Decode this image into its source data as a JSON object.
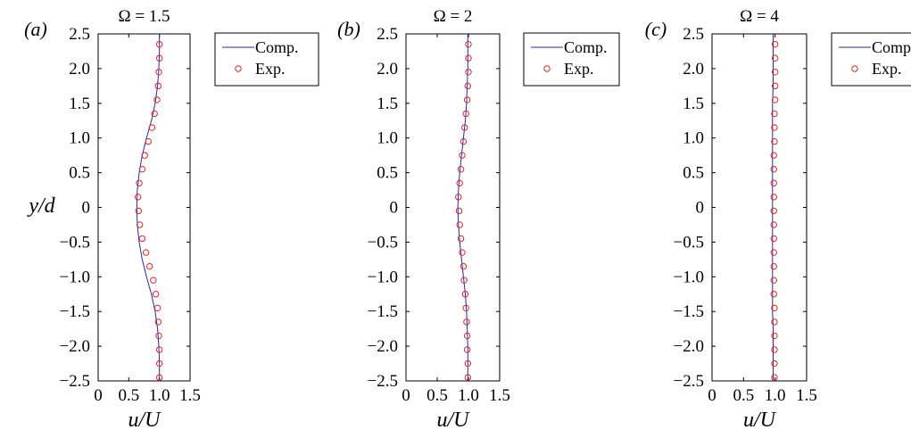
{
  "chart_data": [
    {
      "type": "line",
      "panel_label": "(a)",
      "title": "Ω = 1.5",
      "xlabel": "u/U",
      "ylabel": "y/d",
      "xlim": [
        0,
        1.5
      ],
      "ylim": [
        -2.5,
        2.5
      ],
      "xticks": [
        "0",
        "0.5",
        "1.0",
        "1.5"
      ],
      "yticks": [
        "2.5",
        "2.0",
        "1.5",
        "1.0",
        "0.5",
        "0",
        "−0.5",
        "−1.0",
        "−1.5",
        "−2.0",
        "−2.5"
      ],
      "legend": {
        "position": "outside-right",
        "entries": [
          "Comp.",
          "Exp."
        ]
      },
      "series": [
        {
          "name": "Comp.",
          "style": "line",
          "color": "#1f2e9c",
          "x": [
            1.0,
            1.0,
            0.99,
            0.97,
            0.93,
            0.87,
            0.79,
            0.72,
            0.67,
            0.64,
            0.63,
            0.64,
            0.67,
            0.72,
            0.79,
            0.87,
            0.93,
            0.97,
            0.99,
            1.0,
            1.0
          ],
          "y": [
            2.5,
            2.25,
            2.0,
            1.75,
            1.5,
            1.25,
            1.0,
            0.75,
            0.5,
            0.25,
            0.0,
            -0.25,
            -0.5,
            -0.75,
            -1.0,
            -1.25,
            -1.5,
            -1.75,
            -2.0,
            -2.25,
            -2.5
          ]
        },
        {
          "name": "Exp.",
          "style": "marker",
          "color": "#e0202a",
          "x": [
            1.0,
            1.0,
            0.99,
            0.98,
            0.96,
            0.92,
            0.88,
            0.82,
            0.76,
            0.72,
            0.67,
            0.65,
            0.66,
            0.68,
            0.72,
            0.78,
            0.84,
            0.9,
            0.94,
            0.97,
            0.98,
            0.99,
            1.0,
            1.0,
            1.0
          ],
          "y": [
            2.35,
            2.15,
            1.95,
            1.75,
            1.55,
            1.35,
            1.15,
            0.95,
            0.75,
            0.55,
            0.35,
            0.15,
            -0.05,
            -0.25,
            -0.45,
            -0.65,
            -0.85,
            -1.05,
            -1.25,
            -1.45,
            -1.65,
            -1.85,
            -2.05,
            -2.25,
            -2.45
          ]
        }
      ]
    },
    {
      "type": "line",
      "panel_label": "(b)",
      "title": "Ω = 2",
      "xlabel": "u/U",
      "xlim": [
        0,
        1.5
      ],
      "ylim": [
        -2.5,
        2.5
      ],
      "xticks": [
        "0",
        "0.5",
        "1.0",
        "1.5"
      ],
      "yticks": [
        "2.5",
        "2.0",
        "1.5",
        "1.0",
        "0.5",
        "0",
        "−0.5",
        "−1.0",
        "−1.5",
        "−2.0",
        "−2.5"
      ],
      "legend": {
        "position": "outside-right",
        "entries": [
          "Comp.",
          "Exp."
        ]
      },
      "series": [
        {
          "name": "Comp.",
          "style": "line",
          "color": "#1f2e9c",
          "x": [
            0.99,
            0.99,
            0.99,
            0.98,
            0.97,
            0.95,
            0.92,
            0.89,
            0.86,
            0.84,
            0.83,
            0.84,
            0.86,
            0.89,
            0.92,
            0.95,
            0.97,
            0.98,
            0.99,
            0.99,
            0.99
          ],
          "y": [
            2.5,
            2.25,
            2.0,
            1.75,
            1.5,
            1.25,
            1.0,
            0.75,
            0.5,
            0.25,
            0.0,
            -0.25,
            -0.5,
            -0.75,
            -1.0,
            -1.25,
            -1.5,
            -1.75,
            -2.0,
            -2.25,
            -2.5
          ]
        },
        {
          "name": "Exp.",
          "style": "marker",
          "color": "#e0202a",
          "x": [
            1.0,
            1.0,
            1.0,
            0.99,
            0.98,
            0.96,
            0.94,
            0.92,
            0.9,
            0.88,
            0.86,
            0.84,
            0.85,
            0.86,
            0.88,
            0.9,
            0.92,
            0.93,
            0.95,
            0.96,
            0.97,
            0.98,
            0.98,
            0.99,
            0.99
          ],
          "y": [
            2.35,
            2.15,
            1.95,
            1.75,
            1.55,
            1.35,
            1.15,
            0.95,
            0.75,
            0.55,
            0.35,
            0.15,
            -0.05,
            -0.25,
            -0.45,
            -0.65,
            -0.85,
            -1.05,
            -1.25,
            -1.45,
            -1.65,
            -1.85,
            -2.05,
            -2.25,
            -2.45
          ]
        }
      ]
    },
    {
      "type": "line",
      "panel_label": "(c)",
      "title": "Ω = 4",
      "xlabel": "u/U",
      "xlim": [
        0,
        1.5
      ],
      "ylim": [
        -2.5,
        2.5
      ],
      "xticks": [
        "0",
        "0.5",
        "1.0",
        "1.5"
      ],
      "yticks": [
        "2.5",
        "2.0",
        "1.5",
        "1.0",
        "0.5",
        "0",
        "−0.5",
        "−1.0",
        "−1.5",
        "−2.0",
        "−2.5"
      ],
      "legend": {
        "position": "outside-right",
        "entries": [
          "Comp.",
          "Exp."
        ]
      },
      "series": [
        {
          "name": "Comp.",
          "style": "line",
          "color": "#1f2e9c",
          "x": [
            0.97,
            0.97,
            0.97,
            0.97,
            0.96,
            0.96,
            0.96,
            0.96,
            0.96,
            0.96,
            0.96,
            0.96,
            0.96,
            0.96,
            0.96,
            0.96,
            0.96,
            0.97,
            0.97,
            0.97,
            0.97
          ],
          "y": [
            2.5,
            2.25,
            2.0,
            1.75,
            1.5,
            1.25,
            1.0,
            0.75,
            0.5,
            0.25,
            0.0,
            -0.25,
            -0.5,
            -0.75,
            -1.0,
            -1.25,
            -1.5,
            -1.75,
            -2.0,
            -2.25,
            -2.5
          ]
        },
        {
          "name": "Exp.",
          "style": "marker",
          "color": "#e0202a",
          "x": [
            1.0,
            1.0,
            1.0,
            1.0,
            1.0,
            0.99,
            0.99,
            0.99,
            0.98,
            0.98,
            0.98,
            0.98,
            0.98,
            0.98,
            0.98,
            0.98,
            0.98,
            0.98,
            0.98,
            0.99,
            0.99,
            0.99,
            0.99,
            0.99,
            0.99
          ],
          "y": [
            2.35,
            2.15,
            1.95,
            1.75,
            1.55,
            1.35,
            1.15,
            0.95,
            0.75,
            0.55,
            0.35,
            0.15,
            -0.05,
            -0.25,
            -0.45,
            -0.65,
            -0.85,
            -1.05,
            -1.25,
            -1.45,
            -1.65,
            -1.85,
            -2.05,
            -2.25,
            -2.45
          ]
        }
      ]
    }
  ]
}
